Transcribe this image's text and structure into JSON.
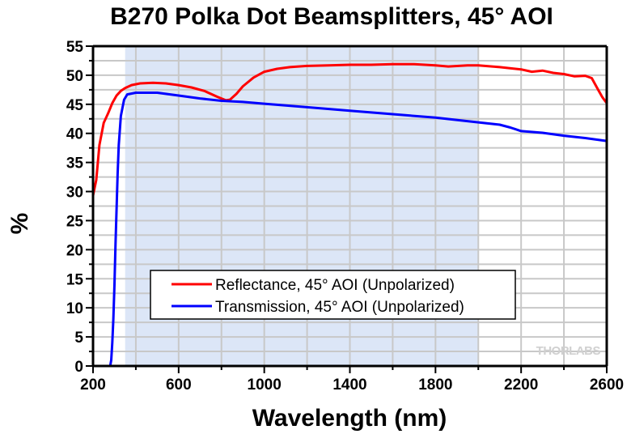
{
  "chart_data": {
    "type": "line",
    "title": "B270 Polka Dot Beamsplitters, 45° AOI",
    "xlabel": "Wavelength (nm)",
    "ylabel": "%",
    "xlim": [
      200,
      2600
    ],
    "ylim": [
      0,
      55
    ],
    "xticks": [
      200,
      600,
      1000,
      1400,
      1800,
      2200,
      2600
    ],
    "xtick_labels": [
      "200",
      "600",
      "1000",
      "1400",
      "1800",
      "2200",
      "2600"
    ],
    "yticks": [
      0,
      5,
      10,
      15,
      20,
      25,
      30,
      35,
      40,
      45,
      50,
      55
    ],
    "ytick_labels": [
      "0",
      "5",
      "10",
      "15",
      "20",
      "25",
      "30",
      "35",
      "40",
      "45",
      "50",
      "55"
    ],
    "grid": true,
    "shaded_region": {
      "x_from": 350,
      "x_to": 2000,
      "color": "#dce6f7"
    },
    "legend": {
      "placement": "center-bottom"
    },
    "watermark": "THORLABS",
    "series": [
      {
        "name": "Reflectance, 45° AOI (Unpolarized)",
        "color": "#ff0000",
        "x": [
          200,
          215,
          230,
          250,
          270,
          290,
          310,
          330,
          350,
          380,
          420,
          480,
          540,
          600,
          660,
          720,
          780,
          820,
          840,
          870,
          900,
          950,
          1000,
          1060,
          1120,
          1200,
          1300,
          1400,
          1500,
          1600,
          1700,
          1800,
          1860,
          1950,
          2000,
          2100,
          2200,
          2250,
          2300,
          2350,
          2400,
          2450,
          2500,
          2530,
          2560,
          2580,
          2600
        ],
        "y": [
          29.3,
          32,
          38,
          41.8,
          43.4,
          45.2,
          46.5,
          47.3,
          47.8,
          48.3,
          48.6,
          48.7,
          48.6,
          48.3,
          47.9,
          47.3,
          46.3,
          45.7,
          45.8,
          46.8,
          48.1,
          49.6,
          50.6,
          51.1,
          51.4,
          51.6,
          51.7,
          51.8,
          51.8,
          51.9,
          51.9,
          51.7,
          51.5,
          51.7,
          51.7,
          51.4,
          51.0,
          50.6,
          50.8,
          50.4,
          50.2,
          49.8,
          49.9,
          49.5,
          47.5,
          46.2,
          45.2
        ]
      },
      {
        "name": "Transmission, 45° AOI (Unpolarized)",
        "color": "#0000ff",
        "x": [
          200,
          280,
          285,
          290,
          295,
          300,
          305,
          310,
          315,
          320,
          330,
          345,
          360,
          400,
          500,
          600,
          700,
          800,
          900,
          1000,
          1200,
          1400,
          1600,
          1800,
          2000,
          2100,
          2150,
          2200,
          2300,
          2400,
          2500,
          2600
        ],
        "y": [
          0,
          0,
          1,
          4,
          8,
          14,
          21,
          27,
          33,
          38,
          43,
          45.8,
          46.7,
          47.0,
          47.0,
          46.5,
          46.0,
          45.6,
          45.4,
          45.1,
          44.5,
          43.9,
          43.3,
          42.7,
          41.9,
          41.5,
          41.0,
          40.4,
          40.1,
          39.6,
          39.2,
          38.7
        ]
      }
    ]
  }
}
